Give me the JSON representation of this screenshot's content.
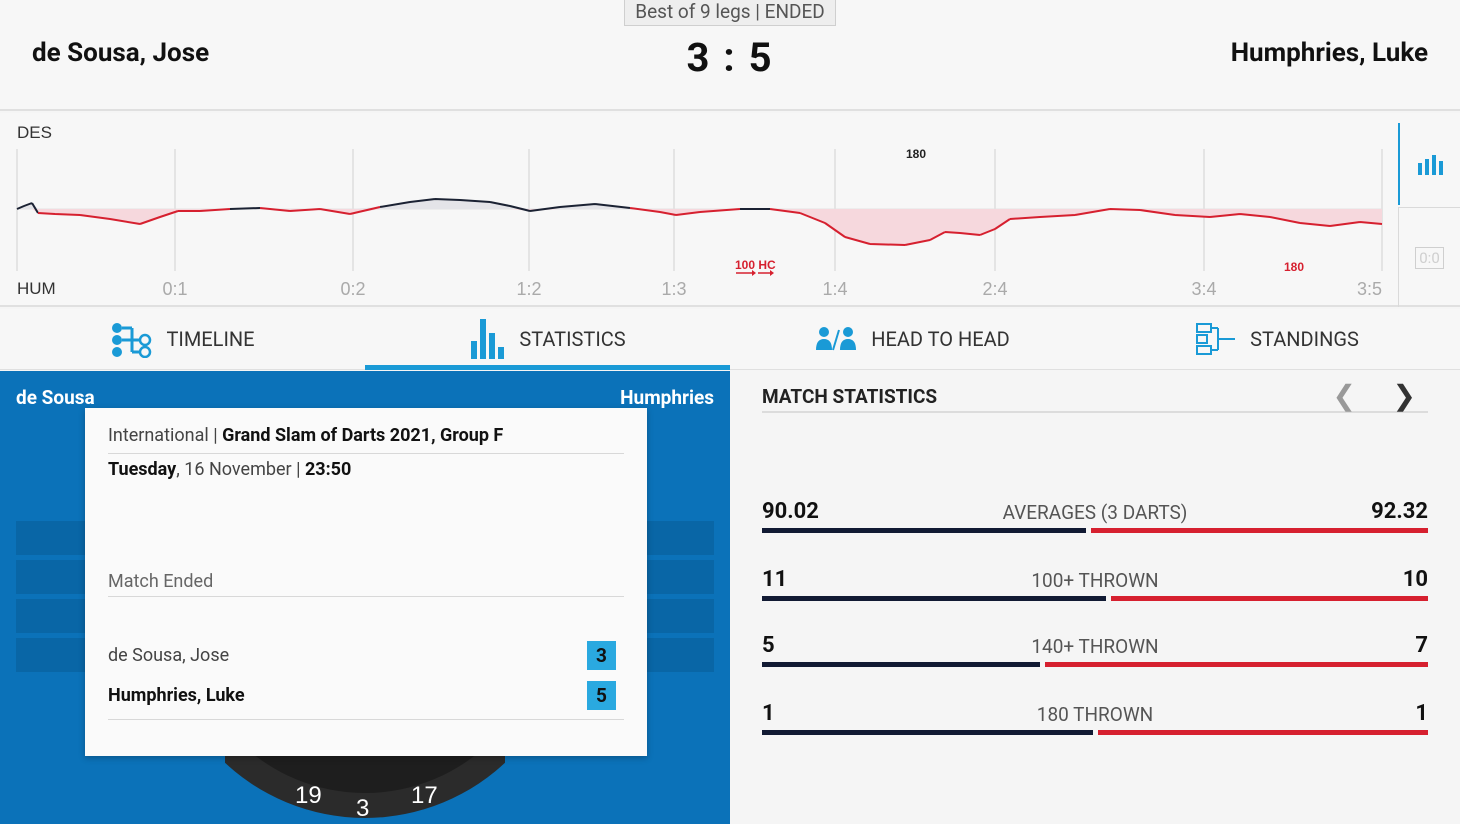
{
  "header": {
    "format": "Best of 9 legs | ENDED",
    "home_player": "de Sousa, Jose",
    "away_player": "Humphries, Luke",
    "score": "3 : 5"
  },
  "momentum": {
    "top_label": "DES",
    "bottom_label": "HUM",
    "leg_scores": [
      "0:1",
      "0:2",
      "1:2",
      "1:3",
      "1:4",
      "2:4",
      "3:4",
      "3:5"
    ],
    "events": [
      {
        "text": "180",
        "side": "home"
      },
      {
        "text": "100 HC",
        "side": "away"
      },
      {
        "text": "180",
        "side": "away"
      }
    ],
    "side_badge": "0:0",
    "home_color": "#1b2233",
    "away_color": "#d6202f"
  },
  "tabs": [
    {
      "label": "TIMELINE",
      "icon": "timeline-icon",
      "active": false
    },
    {
      "label": "STATISTICS",
      "icon": "statistics-icon",
      "active": true
    },
    {
      "label": "HEAD TO HEAD",
      "icon": "head-to-head-icon",
      "active": false
    },
    {
      "label": "STANDINGS",
      "icon": "standings-icon",
      "active": false
    }
  ],
  "board": {
    "home_short": "de Sousa",
    "away_short": "Humphries",
    "numbers": [
      "19",
      "3",
      "17"
    ]
  },
  "match_info": {
    "category": "International",
    "separator": " | ",
    "tournament": "Grand Slam of Darts 2021, Group F",
    "day": "Tuesday",
    "date": ", 16 November | ",
    "time": "23:50",
    "status": "Match Ended",
    "results": [
      {
        "name": "de Sousa, Jose",
        "score": "3"
      },
      {
        "name": "Humphries, Luke",
        "score": "5"
      }
    ]
  },
  "stats": {
    "title": "MATCH STATISTICS",
    "rows": [
      {
        "label": "AVERAGES (3 DARTS)",
        "home": "90.02",
        "away": "92.32",
        "home_share": 0.49
      },
      {
        "label": "100+ THROWN",
        "home": "11",
        "away": "10",
        "home_share": 0.52
      },
      {
        "label": "140+ THROWN",
        "home": "5",
        "away": "7",
        "home_share": 0.42
      },
      {
        "label": "180 THROWN",
        "home": "1",
        "away": "1",
        "home_share": 0.5
      }
    ]
  },
  "colors": {
    "accent": "#1a9ad6",
    "board_bg": "#0b72b9",
    "badge": "#2aa9e0"
  }
}
